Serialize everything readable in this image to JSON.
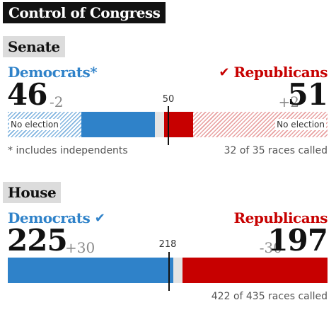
{
  "title": "Control of Congress",
  "colors": {
    "democrat": "#2f82c9",
    "republican": "#c70000",
    "uncalled": "#e4e4e4",
    "no_election_dem_hatch": "#7fb3df",
    "no_election_rep_hatch": "#e8a0a0"
  },
  "chart_data": [
    {
      "type": "bar",
      "chamber": "Senate",
      "total_seats": 100,
      "majority": 50,
      "majority_label": "50",
      "democrats": {
        "name": "Democrats*",
        "seats": 46,
        "seats_label": "46",
        "change_label": "-2",
        "no_election": 23,
        "won_this_election": 23,
        "called_winner": false
      },
      "republicans": {
        "name": "Republicans",
        "seats": 51,
        "seats_label": "51",
        "change_label": "+2",
        "no_election": 42,
        "won_this_election": 9,
        "called_winner": true
      },
      "uncalled": 3,
      "no_election_label": "No election",
      "footnote_left": "* includes independents",
      "footnote_right": "32 of 35 races called"
    },
    {
      "type": "bar",
      "chamber": "House",
      "total_seats": 435,
      "majority": 218,
      "majority_label": "218",
      "democrats": {
        "name": "Democrats",
        "seats": 225,
        "seats_label": "225",
        "change_label": "+30",
        "no_election": 0,
        "won_this_election": 225,
        "called_winner": true
      },
      "republicans": {
        "name": "Republicans",
        "seats": 197,
        "seats_label": "197",
        "change_label": "-30",
        "no_election": 0,
        "won_this_election": 197,
        "called_winner": false
      },
      "uncalled": 13,
      "footnote_right": "422 of 435 races called"
    }
  ]
}
